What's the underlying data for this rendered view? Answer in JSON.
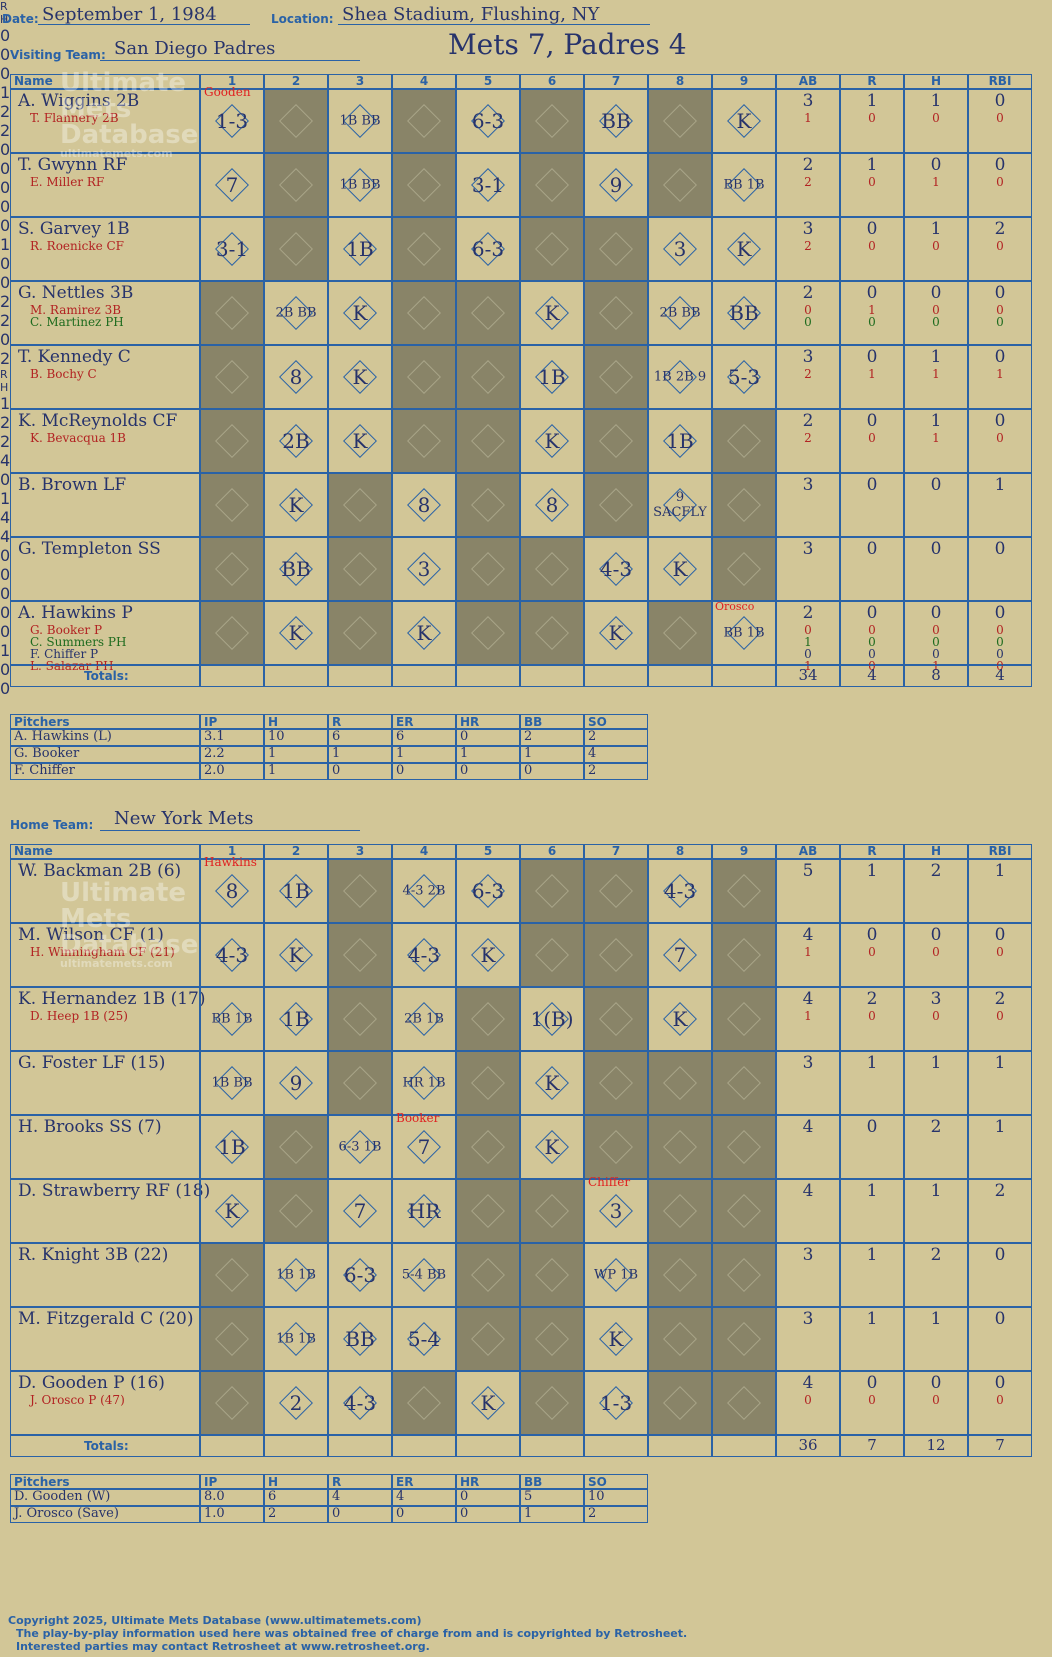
{
  "header": {
    "date_label": "Date:",
    "date": "September 1, 1984",
    "location_label": "Location:",
    "location": "Shea Stadium, Flushing, NY",
    "title": "Mets 7, Padres 4",
    "visiting_label": "Visiting Team:",
    "visiting_team": "San Diego Padres",
    "home_label": "Home Team:",
    "home_team": "New York Mets"
  },
  "watermark": {
    "line1": "Ultimate",
    "line2": "Mets",
    "line3": "Database",
    "url": "ultimatemets.com"
  },
  "columns": {
    "name": "Name",
    "innings": [
      "1",
      "2",
      "3",
      "4",
      "5",
      "6",
      "7",
      "8",
      "9"
    ],
    "stats": [
      "AB",
      "R",
      "H",
      "RBI"
    ]
  },
  "totals_label": "Totals:",
  "rh": [
    "R",
    "H"
  ],
  "visitors": {
    "pitcher_annot": [
      {
        "text": "Gooden",
        "inning": 1,
        "row": 0
      }
    ],
    "rows": [
      {
        "name": "A. Wiggins 2B",
        "subs": [
          {
            "t": "T. Flannery 2B",
            "c": "#b22222"
          }
        ],
        "stats": [
          "3",
          "1",
          "1",
          "0"
        ],
        "substats": [
          [
            "1",
            "0",
            "0",
            "0"
          ]
        ],
        "subc": [
          "#b22222"
        ],
        "plays": {
          "1": "1-3",
          "3": "1B BB",
          "5": "6-3",
          "7": "BB",
          "9": "K"
        }
      },
      {
        "name": "T. Gwynn RF",
        "subs": [
          {
            "t": "E. Miller RF",
            "c": "#b22222"
          }
        ],
        "stats": [
          "2",
          "1",
          "0",
          "0"
        ],
        "substats": [
          [
            "2",
            "0",
            "1",
            "0"
          ]
        ],
        "subc": [
          "#b22222"
        ],
        "plays": {
          "1": "7",
          "3": "1B BB",
          "5": "3-1",
          "7": "9",
          "9": "BB 1B"
        }
      },
      {
        "name": "S. Garvey 1B",
        "subs": [
          {
            "t": "R. Roenicke CF",
            "c": "#b22222"
          }
        ],
        "stats": [
          "3",
          "0",
          "1",
          "2"
        ],
        "substats": [
          [
            "2",
            "0",
            "0",
            "0"
          ]
        ],
        "subc": [
          "#b22222"
        ],
        "plays": {
          "1": "3-1",
          "3": "1B",
          "5": "6-3",
          "8": "3",
          "9": "K"
        }
      },
      {
        "name": "G. Nettles 3B",
        "subs": [
          {
            "t": "M. Ramirez 3B",
            "c": "#b22222"
          },
          {
            "t": "C. Martinez PH",
            "c": "#1e6b1e"
          }
        ],
        "stats": [
          "2",
          "0",
          "0",
          "0"
        ],
        "substats": [
          [
            "0",
            "1",
            "0",
            "0"
          ],
          [
            "0",
            "0",
            "0",
            "0"
          ]
        ],
        "subc": [
          "#b22222",
          "#1e6b1e"
        ],
        "plays": {
          "2": "2B BB",
          "3": "K",
          "6": "K",
          "8": "2B BB",
          "9": "BB"
        }
      },
      {
        "name": "T. Kennedy C",
        "subs": [
          {
            "t": "B. Bochy C",
            "c": "#b22222"
          }
        ],
        "stats": [
          "3",
          "0",
          "1",
          "0"
        ],
        "substats": [
          [
            "2",
            "1",
            "1",
            "1"
          ]
        ],
        "subc": [
          "#b22222"
        ],
        "plays": {
          "2": "8",
          "3": "K",
          "6": "1B",
          "8": "1B 2B 9",
          "9": "5-3"
        }
      },
      {
        "name": "K. McReynolds CF",
        "subs": [
          {
            "t": "K. Bevacqua 1B",
            "c": "#b22222"
          }
        ],
        "stats": [
          "2",
          "0",
          "1",
          "0"
        ],
        "substats": [
          [
            "2",
            "0",
            "1",
            "0"
          ]
        ],
        "subc": [
          "#b22222"
        ],
        "plays": {
          "2": "2B",
          "3": "K",
          "6": "K",
          "8": "1B"
        }
      },
      {
        "name": "B. Brown LF",
        "subs": [],
        "stats": [
          "3",
          "0",
          "0",
          "1"
        ],
        "substats": [],
        "subc": [],
        "plays": {
          "2": "K",
          "4": "8",
          "6": "8",
          "8": "9 SACFLY"
        }
      },
      {
        "name": "G. Templeton SS",
        "subs": [],
        "stats": [
          "3",
          "0",
          "0",
          "0"
        ],
        "substats": [],
        "subc": [],
        "plays": {
          "2": "BB",
          "4": "3",
          "7": "4-3",
          "8": "K"
        }
      },
      {
        "name": "A. Hawkins P",
        "subs": [
          {
            "t": "G. Booker P",
            "c": "#b22222"
          },
          {
            "t": "C. Summers PH",
            "c": "#1e6b1e"
          },
          {
            "t": "F. Chiffer P",
            "c": "#27336b"
          },
          {
            "t": "L. Salazar PH",
            "c": "#b22222"
          }
        ],
        "stats": [
          "2",
          "0",
          "0",
          "0"
        ],
        "substats": [
          [
            "0",
            "0",
            "0",
            "0"
          ],
          [
            "1",
            "0",
            "0",
            "0"
          ],
          [
            "0",
            "0",
            "0",
            "0"
          ],
          [
            "1",
            "0",
            "1",
            "0"
          ]
        ],
        "subc": [
          "#b22222",
          "#1e6b1e",
          "#27336b",
          "#b22222"
        ],
        "plays": {
          "2": "K",
          "4": "K",
          "7": "K",
          "9": "BB 1B"
        }
      }
    ],
    "totals": [
      [
        "0",
        "0"
      ],
      [
        "0",
        "1"
      ],
      [
        "2",
        "2"
      ],
      [
        "0",
        "0"
      ],
      [
        "0",
        "0"
      ],
      [
        "0",
        "1"
      ],
      [
        "0",
        "0"
      ],
      [
        "2",
        "2"
      ],
      [
        "0",
        "2"
      ]
    ],
    "stat_totals": [
      "34",
      "4",
      "8",
      "4"
    ],
    "pitchers_header": [
      "Pitchers",
      "IP",
      "H",
      "R",
      "ER",
      "HR",
      "BB",
      "SO"
    ],
    "pitchers": [
      [
        "A. Hawkins (L)",
        "3.1",
        "10",
        "6",
        "6",
        "0",
        "2",
        "2"
      ],
      [
        "G. Booker",
        "2.2",
        "1",
        "1",
        "1",
        "1",
        "1",
        "4"
      ],
      [
        "F. Chiffer",
        "2.0",
        "1",
        "0",
        "0",
        "0",
        "0",
        "2"
      ]
    ]
  },
  "home": {
    "rows": [
      {
        "name": "W. Backman 2B (6)",
        "subs": [],
        "stats": [
          "5",
          "1",
          "2",
          "1"
        ],
        "substats": [],
        "subc": [],
        "plays": {
          "1": "8",
          "2": "1B",
          "4": "4-3 2B",
          "5": "6-3",
          "8": "4-3"
        }
      },
      {
        "name": "M. Wilson CF (1)",
        "subs": [
          {
            "t": "H. Winningham CF (21)",
            "c": "#b22222"
          }
        ],
        "stats": [
          "4",
          "0",
          "0",
          "0"
        ],
        "substats": [
          [
            "1",
            "0",
            "0",
            "0"
          ]
        ],
        "subc": [
          "#b22222"
        ],
        "plays": {
          "1": "4-3",
          "2": "K",
          "4": "4-3",
          "5": "K",
          "8": "7"
        }
      },
      {
        "name": "K. Hernandez 1B (17)",
        "subs": [
          {
            "t": "D. Heep 1B (25)",
            "c": "#b22222"
          }
        ],
        "stats": [
          "4",
          "2",
          "3",
          "2"
        ],
        "substats": [
          [
            "1",
            "0",
            "0",
            "0"
          ]
        ],
        "subc": [
          "#b22222"
        ],
        "plays": {
          "1": "BB 1B",
          "2": "1B",
          "4": "2B 1B",
          "6": "1(B)",
          "8": "K"
        }
      },
      {
        "name": "G. Foster LF (15)",
        "subs": [],
        "stats": [
          "3",
          "1",
          "1",
          "1"
        ],
        "substats": [],
        "subc": [],
        "plays": {
          "1": "1B BB",
          "2": "9",
          "4": "HR 1B",
          "6": "K"
        }
      },
      {
        "name": "H. Brooks SS (7)",
        "subs": [],
        "stats": [
          "4",
          "0",
          "2",
          "1"
        ],
        "substats": [],
        "subc": [],
        "plays": {
          "1": "1B",
          "3": "6-3 1B",
          "4": "7",
          "6": "K"
        }
      },
      {
        "name": "D. Strawberry RF (18)",
        "subs": [],
        "stats": [
          "4",
          "1",
          "1",
          "2"
        ],
        "substats": [],
        "subc": [],
        "plays": {
          "1": "K",
          "3": "7",
          "4": "HR",
          "7": "3"
        }
      },
      {
        "name": "R. Knight 3B (22)",
        "subs": [],
        "stats": [
          "3",
          "1",
          "2",
          "0"
        ],
        "substats": [],
        "subc": [],
        "plays": {
          "2": "1B 1B",
          "3": "6-3",
          "4": "5-4 BB",
          "7": "WP 1B"
        }
      },
      {
        "name": "M. Fitzgerald C (20)",
        "subs": [],
        "stats": [
          "3",
          "1",
          "1",
          "0"
        ],
        "substats": [],
        "subc": [],
        "plays": {
          "2": "1B 1B",
          "3": "BB",
          "4": "5-4",
          "7": "K"
        }
      },
      {
        "name": "D. Gooden P (16)",
        "subs": [
          {
            "t": "J. Orosco P (47)",
            "c": "#b22222"
          }
        ],
        "stats": [
          "4",
          "0",
          "0",
          "0"
        ],
        "substats": [
          [
            "0",
            "0",
            "0",
            "0"
          ]
        ],
        "subc": [
          "#b22222"
        ],
        "plays": {
          "2": "2",
          "3": "4-3",
          "5": "K",
          "7": "1-3"
        }
      }
    ],
    "pitcher_annots": [
      "Hawkins",
      "Booker",
      "Chiffer",
      "Orosco"
    ],
    "totals": [
      [
        "1",
        "2"
      ],
      [
        "2",
        "4"
      ],
      [
        "0",
        "1"
      ],
      [
        "4",
        "4"
      ],
      [
        "0",
        "0"
      ],
      [
        "0",
        "0"
      ],
      [
        "0",
        "1"
      ],
      [
        "0",
        "0"
      ],
      [
        "",
        ""
      ]
    ],
    "stat_totals": [
      "36",
      "7",
      "12",
      "7"
    ],
    "pitchers_header": [
      "Pitchers",
      "IP",
      "H",
      "R",
      "ER",
      "HR",
      "BB",
      "SO"
    ],
    "pitchers": [
      [
        "D. Gooden (W)",
        "8.0",
        "6",
        "4",
        "4",
        "0",
        "5",
        "10"
      ],
      [
        "J. Orosco (Save)",
        "1.0",
        "2",
        "0",
        "0",
        "0",
        "1",
        "2"
      ]
    ]
  },
  "footer": {
    "line1": "Copyright 2025, Ultimate Mets Database (www.ultimatemets.com)",
    "line2": "The play-by-play information used here was obtained free of charge from and is copyrighted by Retrosheet.",
    "line3": "Interested parties may contact Retrosheet at www.retrosheet.org."
  },
  "colors": {
    "ink": "#27336b",
    "grid": "#2a62a6",
    "bg": "#d2c697",
    "dark": "#898468",
    "red": "#b22222",
    "green": "#1e6b1e"
  }
}
